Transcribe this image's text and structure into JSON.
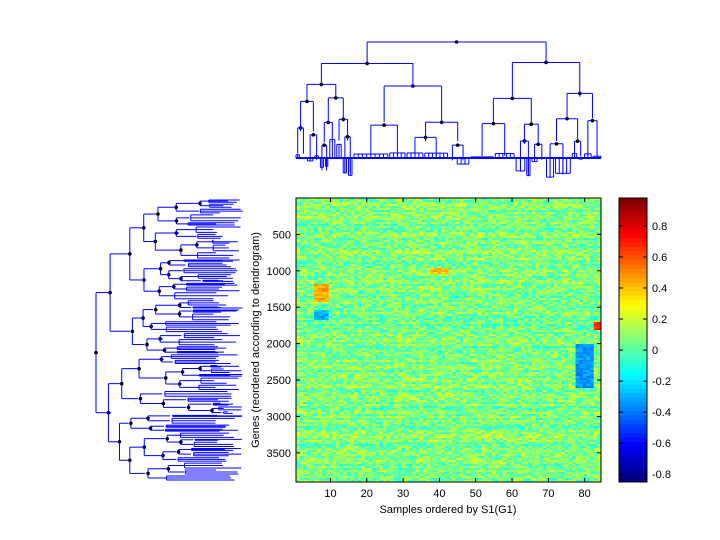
{
  "chart_data": {
    "type": "heatmap",
    "title": "",
    "xlabel": "Samples ordered by S1(G1)",
    "ylabel": "Genes (reordered according to dendrogram)",
    "xlim": [
      0.5,
      84.5
    ],
    "ylim": [
      1,
      3900
    ],
    "x_ticks": [
      10,
      20,
      30,
      40,
      50,
      60,
      70,
      80
    ],
    "y_ticks": [
      500,
      1000,
      1500,
      2000,
      2500,
      3000,
      3500
    ],
    "colorbar": {
      "colormap": "jet",
      "range": [
        -0.85,
        0.98
      ],
      "ticks": [
        0.8,
        0.6,
        0.4,
        0.2,
        0,
        -0.2,
        -0.4,
        -0.6,
        -0.8
      ]
    },
    "dendrograms": {
      "top": "sample dendrogram (84 leaves)",
      "left": "gene dendrogram"
    },
    "color_range_dominant": "light green / cyan (values near 0 to 0.1)",
    "hotspots": [
      {
        "x": [
          6,
          9
        ],
        "y": [
          1180,
          1420
        ],
        "value": 0.45
      },
      {
        "x": [
          38,
          42
        ],
        "y": [
          950,
          1050
        ],
        "value": 0.4
      },
      {
        "x": [
          83,
          84
        ],
        "y": [
          1700,
          1800
        ],
        "value": 0.7
      },
      {
        "x": [
          6,
          9
        ],
        "y": [
          1550,
          1680
        ],
        "value": -0.3
      },
      {
        "x": [
          78,
          82
        ],
        "y": [
          2000,
          2600
        ],
        "value": -0.35
      }
    ]
  },
  "colors": {
    "dendrogram_line": "#0000ff",
    "dendrogram_node": "#000000"
  }
}
